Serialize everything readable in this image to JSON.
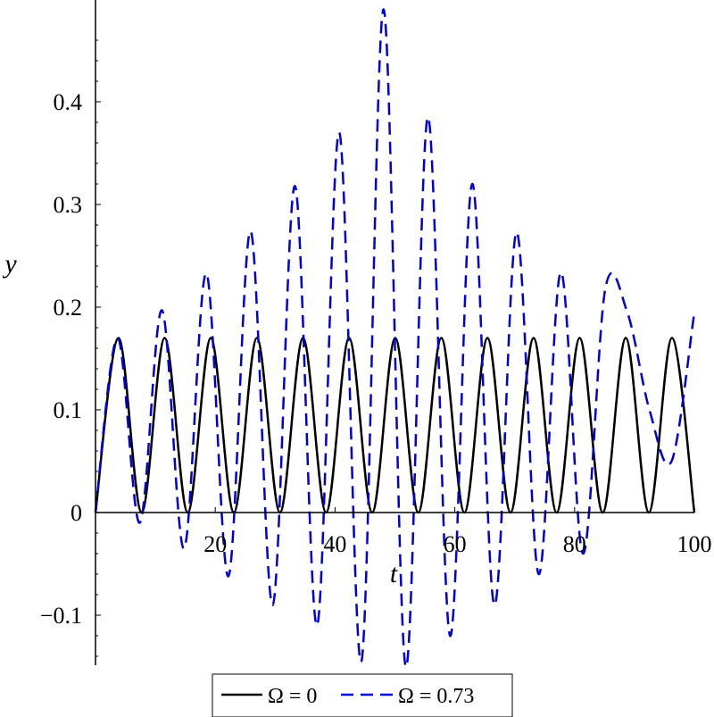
{
  "chart_data": {
    "type": "line",
    "xlabel": "t",
    "ylabel": "y",
    "xlim": [
      0,
      100
    ],
    "ylim": [
      -0.15,
      0.49
    ],
    "x_ticks": [
      20,
      40,
      60,
      80,
      100
    ],
    "y_ticks": [
      -0.1,
      0,
      0.1,
      0.2,
      0.3,
      0.4
    ],
    "x_tick_labels": [
      "20",
      "40",
      "60",
      "80",
      "100"
    ],
    "y_tick_labels": [
      "−0.1",
      "0",
      "0.1",
      "0.2",
      "0.3",
      "0.4"
    ],
    "legend_position": "bottom",
    "series": [
      {
        "name": "Ω = 0",
        "color": "#000000",
        "dash": "solid",
        "x": [
          0,
          3.85,
          7.7,
          11.55,
          15.4,
          19.25,
          23.1,
          26.95,
          30.8,
          34.65,
          38.5,
          42.35,
          46.2,
          50.05,
          53.9,
          57.75,
          61.6,
          65.45,
          69.3,
          73.15,
          77.0,
          80.85,
          84.7,
          88.55,
          92.4,
          96.25,
          100
        ],
        "y": [
          0,
          0.17,
          0,
          0.17,
          0,
          0.17,
          0,
          0.17,
          0,
          0.17,
          0,
          0.17,
          0,
          0.17,
          0,
          0.17,
          0,
          0.17,
          0,
          0.17,
          0,
          0.17,
          0,
          0.17,
          0,
          0.17,
          0
        ]
      },
      {
        "name": "Ω = 0.73",
        "color": "#0000dd",
        "dash": "dashed",
        "x": [
          0,
          3.7,
          7.4,
          11.1,
          14.8,
          18.5,
          22.2,
          25.9,
          29.6,
          33.3,
          37.0,
          40.7,
          44.4,
          48.1,
          51.8,
          55.5,
          59.2,
          62.9,
          66.6,
          70.3,
          74.0,
          77.7,
          81.4,
          85.1,
          88.8,
          92.5,
          96.2,
          100
        ],
        "y": [
          0,
          0.17,
          -0.01,
          0.197,
          -0.035,
          0.233,
          -0.062,
          0.274,
          -0.09,
          0.318,
          -0.11,
          0.37,
          -0.145,
          0.49,
          -0.15,
          0.385,
          -0.12,
          0.32,
          -0.09,
          0.273,
          -0.06,
          0.234,
          -0.04,
          0.217,
          0.195,
          0.1,
          0.05,
          0.195
        ]
      }
    ]
  }
}
